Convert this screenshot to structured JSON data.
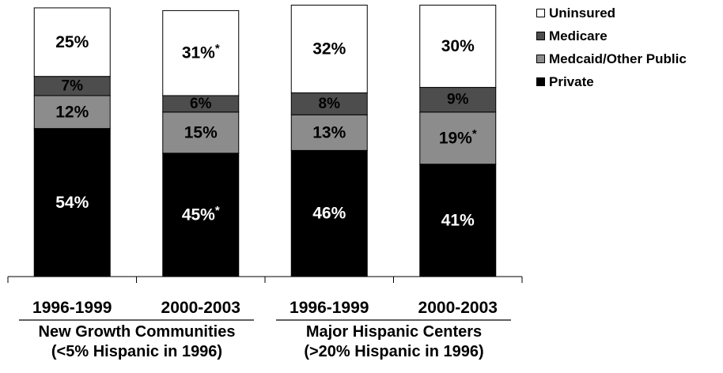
{
  "chart_data": {
    "type": "bar",
    "stacked": true,
    "normalized_percent": true,
    "categories": [
      "1996-1999",
      "2000-2003",
      "1996-1999",
      "2000-2003"
    ],
    "groups": [
      {
        "label_line1": "New Growth Communities",
        "label_line2": "(<5% Hispanic in 1996)",
        "categories": [
          0,
          1
        ]
      },
      {
        "label_line1": "Major Hispanic Centers",
        "label_line2": "(>20% Hispanic in 1996)",
        "categories": [
          2,
          3
        ]
      }
    ],
    "series": [
      {
        "name": "Private",
        "color": "#000000",
        "text_color": "#ffffff",
        "values": [
          54,
          45,
          46,
          41
        ],
        "labels": [
          "54%",
          "45%",
          "46%",
          "41%"
        ],
        "significant": [
          false,
          true,
          false,
          false
        ]
      },
      {
        "name": "Medcaid/Other Public",
        "color": "#8c8c8c",
        "text_color": "#000000",
        "values": [
          12,
          15,
          13,
          19
        ],
        "labels": [
          "12%",
          "15%",
          "13%",
          "19%"
        ],
        "significant": [
          false,
          false,
          false,
          true
        ]
      },
      {
        "name": "Medicare",
        "color": "#4d4d4d",
        "text_color": "#000000",
        "values": [
          7,
          6,
          8,
          9
        ],
        "labels": [
          "7%",
          "6%",
          "8%",
          "9%"
        ],
        "significant": [
          false,
          false,
          false,
          false
        ]
      },
      {
        "name": "Uninsured",
        "color": "#ffffff",
        "text_color": "#000000",
        "values": [
          25,
          31,
          32,
          30
        ],
        "labels": [
          "25%",
          "31%",
          "32%",
          "30%"
        ],
        "significant": [
          false,
          true,
          false,
          false
        ]
      }
    ],
    "significance_marker": "*",
    "legend_order": [
      "Uninsured",
      "Medicare",
      "Medcaid/Other Public",
      "Private"
    ],
    "legend_position": "top-right",
    "ylim": [
      0,
      100
    ],
    "y_axis_visible": false,
    "grid": false
  }
}
